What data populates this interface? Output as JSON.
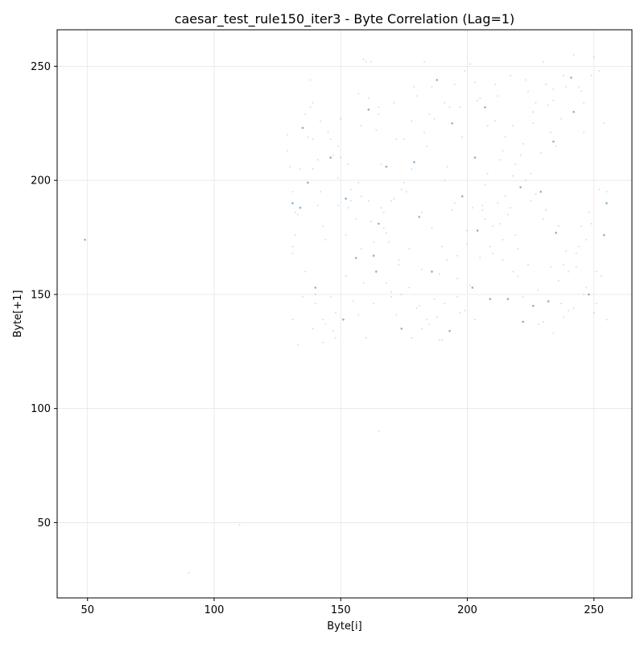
{
  "chart_data": {
    "type": "scatter",
    "title": "caesar_test_rule150_iter3 - Byte Correlation (Lag=1)",
    "xlabel": "Byte[i]",
    "ylabel": "Byte[+1]",
    "xlim": [
      38,
      265
    ],
    "ylim": [
      17,
      266
    ],
    "x_ticks": [
      50,
      100,
      150,
      200,
      250
    ],
    "y_ticks": [
      50,
      100,
      150,
      200,
      250
    ],
    "grid": true,
    "legend": "none",
    "colors": {
      "point": "#1f77b4"
    },
    "points": [
      [
        49,
        174
      ],
      [
        90,
        28
      ],
      [
        110,
        49
      ],
      [
        165,
        90
      ],
      [
        129,
        213
      ],
      [
        129,
        220
      ],
      [
        130,
        206
      ],
      [
        131,
        190
      ],
      [
        131,
        195
      ],
      [
        131,
        168
      ],
      [
        131,
        139
      ],
      [
        132,
        186
      ],
      [
        133,
        128
      ],
      [
        134,
        205
      ],
      [
        135,
        223
      ],
      [
        136,
        229
      ],
      [
        137,
        219
      ],
      [
        138,
        244
      ],
      [
        139,
        234
      ],
      [
        139,
        218
      ],
      [
        139,
        205
      ],
      [
        140,
        153
      ],
      [
        140,
        150
      ],
      [
        141,
        189
      ],
      [
        142,
        195
      ],
      [
        143,
        139
      ],
      [
        143,
        180
      ],
      [
        144,
        174
      ],
      [
        146,
        210
      ],
      [
        146,
        149
      ],
      [
        147,
        211
      ],
      [
        148,
        131
      ],
      [
        149,
        189
      ],
      [
        149,
        201
      ],
      [
        150,
        227
      ],
      [
        152,
        192
      ],
      [
        153,
        188
      ],
      [
        154,
        191
      ],
      [
        156,
        183
      ],
      [
        158,
        193
      ],
      [
        159,
        253
      ],
      [
        160,
        252
      ],
      [
        161,
        231
      ],
      [
        162,
        252
      ],
      [
        163,
        146
      ],
      [
        164,
        222
      ],
      [
        165,
        232
      ],
      [
        166,
        207
      ],
      [
        167,
        179
      ],
      [
        168,
        206
      ],
      [
        168,
        177
      ],
      [
        170,
        191
      ],
      [
        170,
        151
      ],
      [
        171,
        234
      ],
      [
        172,
        218
      ],
      [
        173,
        165
      ],
      [
        174,
        135
      ],
      [
        175,
        218
      ],
      [
        176,
        195
      ],
      [
        177,
        170
      ],
      [
        178,
        226
      ],
      [
        179,
        241
      ],
      [
        180,
        237
      ],
      [
        181,
        184
      ],
      [
        182,
        161
      ],
      [
        183,
        252
      ],
      [
        184,
        139
      ],
      [
        185,
        229
      ],
      [
        186,
        241
      ],
      [
        187,
        148
      ],
      [
        188,
        244
      ],
      [
        189,
        159
      ],
      [
        190,
        171
      ],
      [
        190,
        130
      ],
      [
        191,
        146
      ],
      [
        192,
        206
      ],
      [
        193,
        232
      ],
      [
        194,
        225
      ],
      [
        195,
        190
      ],
      [
        196,
        167
      ],
      [
        197,
        232
      ],
      [
        199,
        143
      ],
      [
        200,
        178
      ],
      [
        201,
        251
      ],
      [
        202,
        153
      ],
      [
        203,
        139
      ],
      [
        204,
        235
      ],
      [
        205,
        236
      ],
      [
        206,
        187
      ],
      [
        207,
        183
      ],
      [
        208,
        224
      ],
      [
        209,
        148
      ],
      [
        210,
        168
      ],
      [
        211,
        242
      ],
      [
        212,
        237
      ],
      [
        213,
        209
      ],
      [
        214,
        174
      ],
      [
        215,
        193
      ],
      [
        216,
        148
      ],
      [
        217,
        246
      ],
      [
        218,
        202
      ],
      [
        218,
        224
      ],
      [
        219,
        176
      ],
      [
        220,
        158
      ],
      [
        221,
        211
      ],
      [
        222,
        138
      ],
      [
        223,
        244
      ],
      [
        224,
        239
      ],
      [
        225,
        191
      ],
      [
        226,
        230
      ],
      [
        227,
        234
      ],
      [
        228,
        137
      ],
      [
        229,
        195
      ],
      [
        230,
        183
      ],
      [
        231,
        242
      ],
      [
        232,
        233
      ],
      [
        233,
        162
      ],
      [
        234,
        240
      ],
      [
        234,
        235
      ],
      [
        234,
        217
      ],
      [
        235,
        215
      ],
      [
        236,
        180
      ],
      [
        237,
        146
      ],
      [
        238,
        163
      ],
      [
        239,
        241
      ],
      [
        240,
        143
      ],
      [
        241,
        245
      ],
      [
        242,
        255
      ],
      [
        243,
        168
      ],
      [
        244,
        241
      ],
      [
        245,
        180
      ],
      [
        246,
        234
      ],
      [
        247,
        174
      ],
      [
        248,
        150
      ],
      [
        249,
        181
      ],
      [
        250,
        254
      ],
      [
        251,
        160
      ],
      [
        252,
        248
      ],
      [
        253,
        158
      ],
      [
        254,
        225
      ],
      [
        255,
        190
      ],
      [
        255,
        195
      ],
      [
        157,
        238
      ],
      [
        161,
        236
      ],
      [
        165,
        229
      ],
      [
        158,
        224
      ],
      [
        152,
        176
      ],
      [
        163,
        167
      ],
      [
        157,
        141
      ],
      [
        160,
        131
      ],
      [
        170,
        149
      ],
      [
        172,
        141
      ],
      [
        178,
        131
      ],
      [
        182,
        135
      ],
      [
        186,
        160
      ],
      [
        192,
        165
      ],
      [
        196,
        157
      ],
      [
        191,
        200
      ],
      [
        178,
        205
      ],
      [
        184,
        215
      ],
      [
        198,
        219
      ],
      [
        203,
        210
      ],
      [
        207,
        198
      ],
      [
        212,
        190
      ],
      [
        216,
        185
      ],
      [
        220,
        170
      ],
      [
        224,
        163
      ],
      [
        228,
        152
      ],
      [
        232,
        147
      ],
      [
        236,
        156
      ],
      [
        240,
        160
      ],
      [
        244,
        171
      ],
      [
        248,
        186
      ],
      [
        252,
        196
      ],
      [
        246,
        221
      ],
      [
        242,
        230
      ],
      [
        238,
        246
      ],
      [
        230,
        252
      ],
      [
        226,
        225
      ],
      [
        222,
        216
      ],
      [
        214,
        213
      ],
      [
        208,
        203
      ],
      [
        204,
        178
      ],
      [
        200,
        172
      ],
      [
        196,
        149
      ],
      [
        188,
        140
      ],
      [
        180,
        144
      ],
      [
        174,
        150
      ],
      [
        168,
        155
      ],
      [
        164,
        160
      ],
      [
        158,
        170
      ],
      [
        154,
        196
      ],
      [
        150,
        210
      ],
      [
        146,
        218
      ],
      [
        142,
        226
      ],
      [
        138,
        232
      ],
      [
        134,
        188
      ],
      [
        132,
        176
      ],
      [
        136,
        160
      ],
      [
        140,
        146
      ],
      [
        144,
        137
      ],
      [
        148,
        142
      ],
      [
        152,
        158
      ],
      [
        156,
        166
      ],
      [
        162,
        182
      ],
      [
        166,
        188
      ],
      [
        174,
        196
      ],
      [
        182,
        186
      ],
      [
        186,
        179
      ],
      [
        194,
        187
      ],
      [
        198,
        193
      ],
      [
        202,
        188
      ],
      [
        206,
        189
      ],
      [
        210,
        180
      ],
      [
        214,
        165
      ],
      [
        218,
        160
      ],
      [
        222,
        149
      ],
      [
        226,
        145
      ],
      [
        230,
        138
      ],
      [
        234,
        133
      ],
      [
        238,
        140
      ],
      [
        242,
        144
      ],
      [
        246,
        150
      ],
      [
        250,
        142
      ],
      [
        254,
        176
      ],
      [
        249,
        246
      ],
      [
        245,
        239
      ],
      [
        237,
        227
      ],
      [
        233,
        221
      ],
      [
        229,
        212
      ],
      [
        225,
        203
      ],
      [
        221,
        197
      ],
      [
        217,
        188
      ],
      [
        213,
        181
      ],
      [
        209,
        171
      ],
      [
        205,
        166
      ],
      [
        201,
        154
      ],
      [
        197,
        142
      ],
      [
        193,
        134
      ],
      [
        189,
        130
      ],
      [
        185,
        137
      ],
      [
        181,
        145
      ],
      [
        177,
        153
      ],
      [
        173,
        163
      ],
      [
        169,
        173
      ],
      [
        165,
        181
      ],
      [
        161,
        191
      ],
      [
        157,
        199
      ],
      [
        153,
        207
      ],
      [
        149,
        215
      ],
      [
        145,
        221
      ],
      [
        141,
        209
      ],
      [
        137,
        199
      ],
      [
        133,
        185
      ],
      [
        131,
        171
      ],
      [
        135,
        149
      ],
      [
        139,
        135
      ],
      [
        143,
        129
      ],
      [
        147,
        134
      ],
      [
        151,
        139
      ],
      [
        155,
        147
      ],
      [
        159,
        155
      ],
      [
        163,
        173
      ],
      [
        167,
        186
      ],
      [
        171,
        192
      ],
      [
        175,
        199
      ],
      [
        179,
        208
      ],
      [
        183,
        221
      ],
      [
        187,
        227
      ],
      [
        191,
        234
      ],
      [
        195,
        242
      ],
      [
        199,
        248
      ],
      [
        203,
        243
      ],
      [
        207,
        232
      ],
      [
        211,
        226
      ],
      [
        215,
        219
      ],
      [
        219,
        207
      ],
      [
        223,
        200
      ],
      [
        227,
        194
      ],
      [
        231,
        187
      ],
      [
        235,
        177
      ],
      [
        239,
        169
      ],
      [
        243,
        162
      ],
      [
        247,
        153
      ],
      [
        251,
        146
      ],
      [
        255,
        139
      ]
    ]
  }
}
